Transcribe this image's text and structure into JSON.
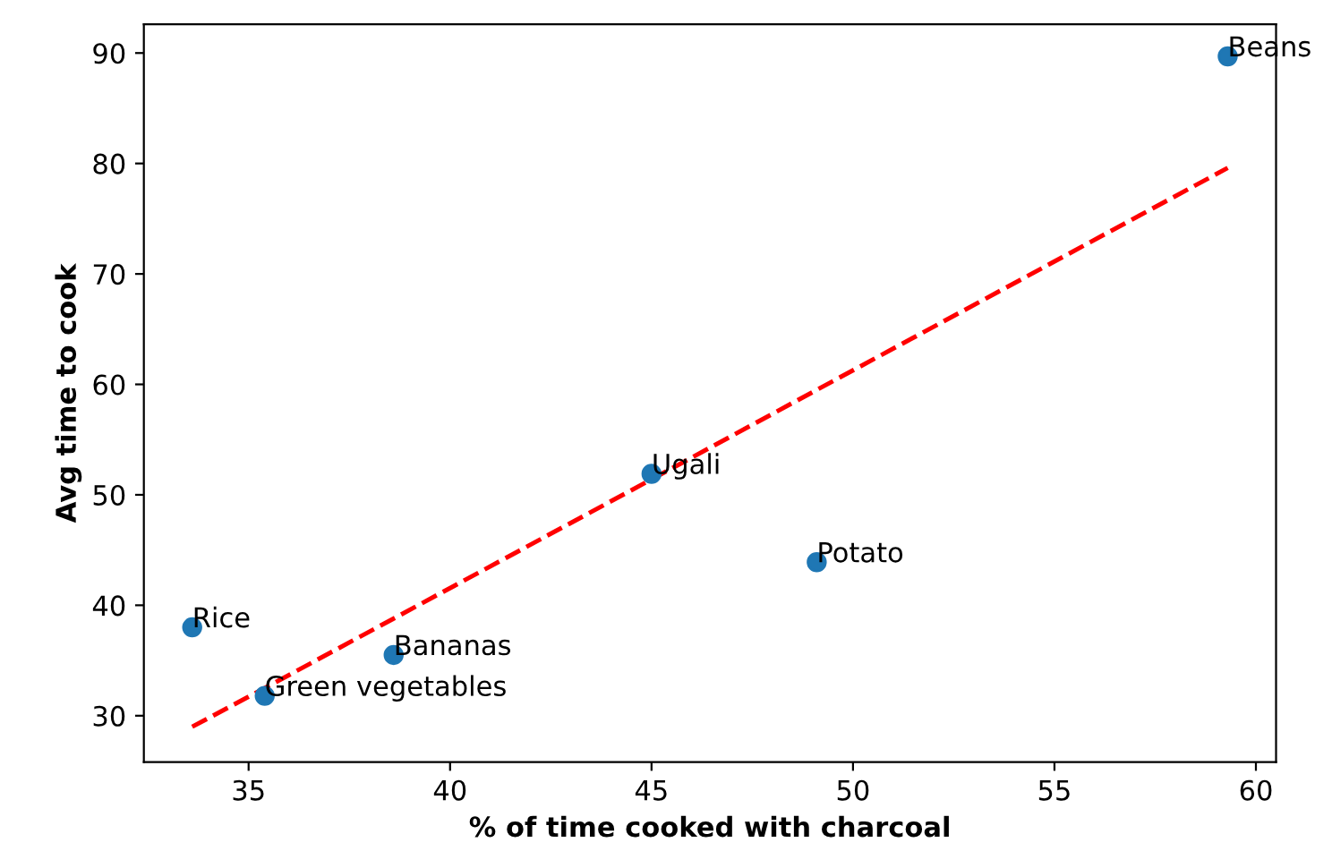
{
  "chart_data": {
    "type": "scatter",
    "xlabel": "% of time cooked with charcoal",
    "ylabel": "Avg time to cook",
    "xlim": [
      32.4,
      60.5
    ],
    "ylim": [
      25.8,
      92.6
    ],
    "xticks": [
      35,
      40,
      45,
      50,
      55,
      60
    ],
    "yticks": [
      30,
      40,
      50,
      60,
      70,
      80,
      90
    ],
    "grid": false,
    "marker": "circle",
    "series": [
      {
        "color": "#1f77b4",
        "x": [
          59.3,
          45.0,
          49.1,
          33.6,
          38.6,
          35.4
        ],
        "values": [
          89.7,
          51.9,
          43.9,
          38.0,
          35.5,
          31.8
        ]
      },
      {
        "type": "line",
        "color": "#ff0000",
        "line_style": "dashed",
        "marker": "none",
        "x": [
          33.6,
          35.4,
          38.6,
          45.0,
          49.1,
          59.3
        ],
        "values": [
          29.0,
          32.5,
          38.8,
          51.4,
          59.5,
          79.6
        ]
      }
    ],
    "annotations": [
      {
        "text": "Beans",
        "x": 59.3,
        "y": 89.7
      },
      {
        "text": "Ugali",
        "x": 45.0,
        "y": 51.9
      },
      {
        "text": "Potato",
        "x": 49.1,
        "y": 43.9
      },
      {
        "text": "Rice",
        "x": 33.6,
        "y": 38.0
      },
      {
        "text": "Bananas",
        "x": 38.6,
        "y": 35.5
      },
      {
        "text": "Green vegetables",
        "x": 35.4,
        "y": 31.8
      }
    ]
  }
}
